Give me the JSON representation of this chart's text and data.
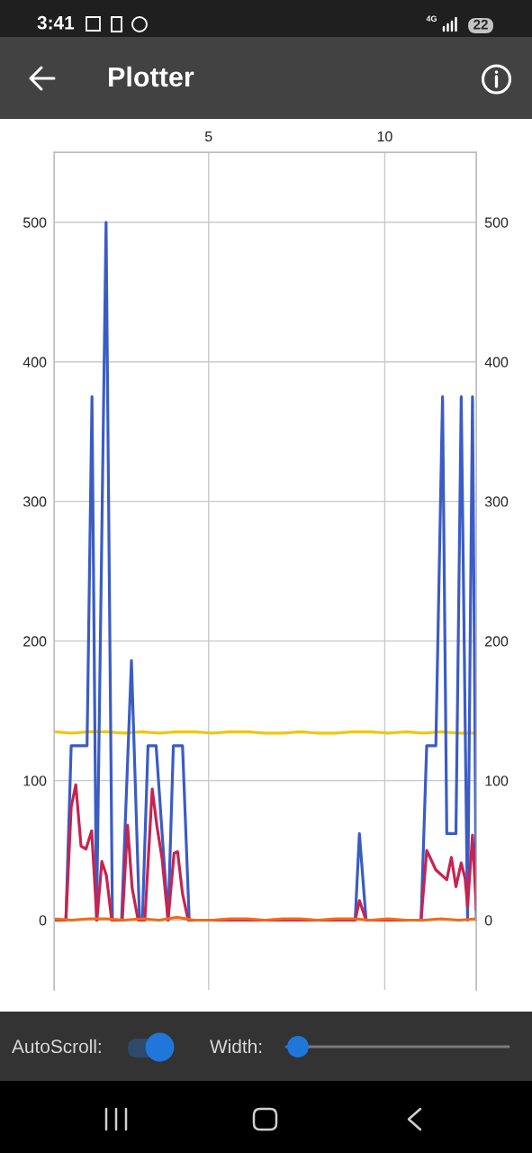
{
  "chart_data": {
    "type": "line",
    "title": "Plotter",
    "annotations": [
      "3:41",
      "4G",
      "22",
      "AutoScroll:",
      "Width:"
    ],
    "xlim": [
      0.62,
      12.6
    ],
    "xticks": [
      5,
      10
    ],
    "ylim": [
      -50,
      550
    ],
    "yticks": [
      0,
      100,
      200,
      300,
      400,
      500
    ],
    "y2lim": [
      -50,
      550
    ],
    "y2ticks": [
      0,
      100,
      200,
      300,
      400,
      500
    ],
    "grid": true,
    "series": [
      {
        "color": "#f2c70c",
        "x": [
          0.62,
          1.1,
          1.6,
          2.1,
          2.6,
          3.1,
          3.6,
          4.1,
          4.6,
          5.1,
          5.6,
          6.1,
          6.6,
          7.1,
          7.6,
          8.1,
          8.6,
          9.1,
          9.6,
          10.1,
          10.6,
          11.1,
          11.6,
          12.1,
          12.6
        ],
        "values": [
          135,
          134,
          135,
          135,
          134,
          135,
          134,
          135,
          135,
          134,
          135,
          135,
          134,
          134,
          135,
          134,
          134,
          135,
          135,
          134,
          135,
          134,
          135,
          134,
          134
        ]
      },
      {
        "color": "#3b5cc6",
        "x": [
          0.62,
          0.95,
          1.1,
          1.55,
          1.69,
          1.82,
          2.09,
          2.27,
          2.53,
          2.81,
          3.04,
          3.12,
          3.28,
          3.51,
          3.85,
          4.0,
          4.26,
          4.45,
          9.16,
          9.28,
          9.47,
          11.03,
          11.19,
          11.45,
          11.64,
          11.76,
          12.02,
          12.17,
          12.35,
          12.49,
          12.6
        ],
        "values": [
          0,
          0,
          125,
          125,
          375,
          0,
          500,
          0,
          0,
          186,
          0,
          0,
          125,
          125,
          0,
          125,
          125,
          0,
          0,
          62,
          0,
          0,
          125,
          125,
          375,
          62,
          62,
          375,
          0,
          375,
          0
        ]
      },
      {
        "color": "#c8234f",
        "x": [
          0.62,
          0.95,
          1.1,
          1.23,
          1.38,
          1.52,
          1.68,
          1.83,
          1.97,
          2.1,
          2.25,
          2.55,
          2.7,
          2.83,
          3.0,
          3.19,
          3.4,
          3.53,
          3.68,
          3.85,
          4.02,
          4.12,
          4.26,
          4.42,
          9.16,
          9.28,
          9.47,
          11.03,
          11.19,
          11.45,
          11.76,
          11.89,
          12.02,
          12.17,
          12.28,
          12.35,
          12.49,
          12.6
        ],
        "values": [
          0,
          0,
          81,
          97,
          53,
          51,
          64,
          0,
          42,
          32,
          0,
          0,
          68,
          23,
          0,
          0,
          94,
          68,
          44,
          0,
          48,
          49,
          19,
          0,
          0,
          14,
          0,
          0,
          50,
          36,
          29,
          45,
          24,
          41,
          30,
          10,
          61,
          7
        ]
      },
      {
        "color": "#ef6c1a",
        "x": [
          0.62,
          1.1,
          1.6,
          2.1,
          2.6,
          3.1,
          3.6,
          4.1,
          4.6,
          5.1,
          5.6,
          6.1,
          6.6,
          7.1,
          7.6,
          8.1,
          8.6,
          9.1,
          9.6,
          10.1,
          10.6,
          11.1,
          11.6,
          12.1,
          12.6
        ],
        "values": [
          1,
          0,
          1,
          1,
          0,
          1,
          0,
          2,
          0,
          0,
          1,
          1,
          0,
          1,
          1,
          0,
          1,
          1,
          0,
          1,
          0,
          0,
          1,
          0,
          1
        ]
      }
    ]
  }
}
